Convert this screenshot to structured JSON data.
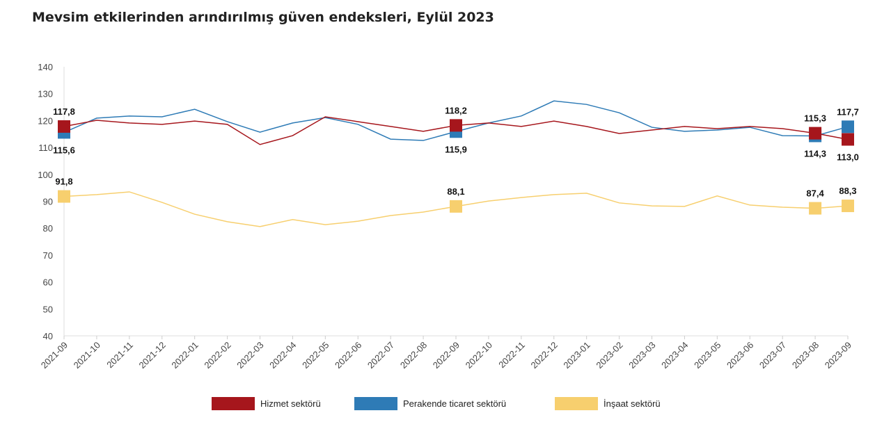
{
  "chart_data": {
    "type": "line",
    "title": "Mevsim etkilerinden arındırılmış güven endeksleri, Eylül 2023",
    "xlabel": "",
    "ylabel": "",
    "ylim": [
      40,
      140
    ],
    "yticks": [
      40,
      50,
      60,
      70,
      80,
      90,
      100,
      110,
      120,
      130,
      140
    ],
    "grid": false,
    "legend": "bottom",
    "categories": [
      "2021-09",
      "2021-10",
      "2021-11",
      "2021-12",
      "2022-01",
      "2022-02",
      "2022-03",
      "2022-04",
      "2022-05",
      "2022-06",
      "2022-07",
      "2022-08",
      "2022-09",
      "2022-10",
      "2022-11",
      "2022-12",
      "2023-01",
      "2023-02",
      "2023-03",
      "2023-04",
      "2023-05",
      "2023-06",
      "2023-07",
      "2023-08",
      "2023-09"
    ],
    "series": [
      {
        "name": "Hizmet sektörü",
        "color": "#a6161c",
        "values": [
          117.8,
          120.1,
          119.1,
          118.6,
          119.8,
          118.6,
          111.1,
          114.4,
          121.4,
          119.6,
          117.8,
          116.0,
          118.2,
          119.1,
          117.8,
          119.8,
          117.8,
          115.2,
          116.5,
          117.8,
          117.0,
          117.8,
          117.0,
          115.3,
          113.0
        ],
        "labels": [
          {
            "i": 0,
            "text": "117,8",
            "pos": "above"
          },
          {
            "i": 12,
            "text": "118,2",
            "pos": "above"
          },
          {
            "i": 23,
            "text": "115,3",
            "pos": "above"
          },
          {
            "i": 24,
            "text": "113,0",
            "pos": "below"
          }
        ]
      },
      {
        "name": "Perakende ticaret sektörü",
        "color": "#2e7bb6",
        "values": [
          115.6,
          120.9,
          121.7,
          121.4,
          124.2,
          119.6,
          115.7,
          119.1,
          121.1,
          118.6,
          113.1,
          112.6,
          115.9,
          119.1,
          121.7,
          127.3,
          126.0,
          122.9,
          117.5,
          116.0,
          116.5,
          117.5,
          114.4,
          114.3,
          117.7
        ],
        "labels": [
          {
            "i": 0,
            "text": "115,6",
            "pos": "below"
          },
          {
            "i": 12,
            "text": "115,9",
            "pos": "below"
          },
          {
            "i": 23,
            "text": "114,3",
            "pos": "below"
          },
          {
            "i": 24,
            "text": "117,7",
            "pos": "above"
          }
        ]
      },
      {
        "name": "İnşaat sektörü",
        "color": "#f7cf6e",
        "values": [
          91.8,
          92.5,
          93.5,
          89.6,
          85.2,
          82.4,
          80.6,
          83.2,
          81.3,
          82.6,
          84.7,
          86.0,
          88.1,
          90.1,
          91.4,
          92.5,
          93.0,
          89.4,
          88.3,
          88.1,
          92.0,
          88.6,
          87.8,
          87.4,
          88.3
        ],
        "labels": [
          {
            "i": 0,
            "text": "91,8",
            "pos": "above"
          },
          {
            "i": 12,
            "text": "88,1",
            "pos": "above"
          },
          {
            "i": 23,
            "text": "87,4",
            "pos": "above"
          },
          {
            "i": 24,
            "text": "88,3",
            "pos": "above"
          }
        ]
      }
    ]
  }
}
